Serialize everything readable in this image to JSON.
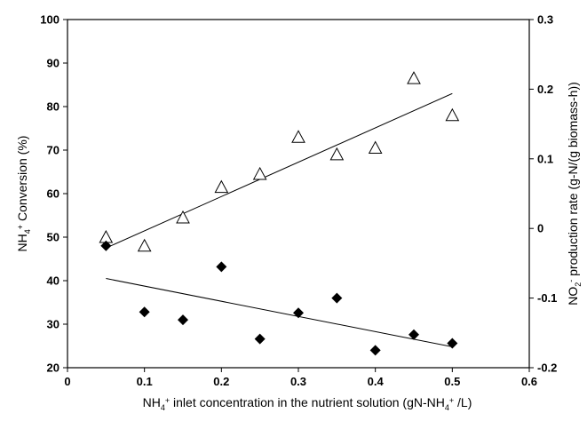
{
  "chart_data": {
    "type": "scatter",
    "x_axis": {
      "label": "NH4+ inlet concentration in the nutrient solution (gN-NH4+ /L)",
      "label_parts": [
        "NH",
        "4",
        "+",
        " inlet concentration in the nutrient solution (gN-NH",
        "4",
        "+",
        " /L)"
      ],
      "range": [
        0,
        0.6
      ],
      "ticks": [
        "0",
        "0.1",
        "0.2",
        "0.3",
        "0.4",
        "0.5",
        "0.6"
      ]
    },
    "y_left_axis": {
      "label": "NH4+ Conversion (%)",
      "label_parts": [
        "NH",
        "4",
        "+",
        " Conversion (%)"
      ],
      "range": [
        20,
        100
      ],
      "ticks": [
        "20",
        "30",
        "40",
        "50",
        "60",
        "70",
        "80",
        "90",
        "100"
      ]
    },
    "y_right_axis": {
      "label": "NO2- production rate (g-N/(g biomass-h))",
      "label_parts": [
        "NO",
        "2",
        "-",
        " production rate (g-N/(g biomass-h))"
      ],
      "range": [
        -0.2,
        0.3
      ],
      "ticks": [
        "-0.2",
        "-0.1",
        "0",
        "0.1",
        "0.2",
        "0.3"
      ]
    },
    "series": [
      {
        "axis": "left",
        "marker": "triangle-open",
        "x": [
          0.05,
          0.1,
          0.15,
          0.2,
          0.25,
          0.3,
          0.35,
          0.4,
          0.45,
          0.5
        ],
        "y": [
          50,
          48,
          54.5,
          61.5,
          64.5,
          73,
          69,
          70.5,
          86.5,
          78
        ],
        "trendline": {
          "x": [
            0.05,
            0.5
          ],
          "y": [
            47.5,
            83
          ]
        }
      },
      {
        "axis": "left",
        "marker": "diamond-filled",
        "x": [
          0.05,
          0.1,
          0.15,
          0.2,
          0.25,
          0.3,
          0.35,
          0.4,
          0.45,
          0.5
        ],
        "y": [
          48,
          32.8,
          31,
          43.2,
          26.6,
          32.6,
          36,
          24,
          27.6,
          25.6
        ],
        "trendline": {
          "x": [
            0.05,
            0.5
          ],
          "y": [
            40.5,
            24.8
          ]
        }
      }
    ],
    "grid": false,
    "legend": "none",
    "colors": {
      "marker": "#000000",
      "line": "#000000"
    }
  }
}
